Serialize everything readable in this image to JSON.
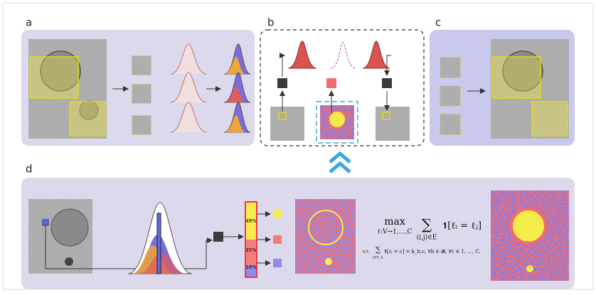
{
  "panel_labels": [
    "a",
    "b",
    "c",
    "d"
  ],
  "proportions": [
    "49%",
    "35%",
    "16%"
  ],
  "equations": {
    "objective_op": "max",
    "objective_sub": "ℓ:V→1,…,C",
    "sum_symbol": "∑",
    "sum_sub": "(i,j)∈E",
    "objective_body": "𝟏[ℓᵢ = ℓⱼ]",
    "st": "s.t.",
    "constraint_sub": "i∈V_b",
    "constraint_body": "𝟏[ℓᵢ = c] = k_b,c, ∀b ∈ 𝓑, ∀c ∈ 1, …, C."
  }
}
